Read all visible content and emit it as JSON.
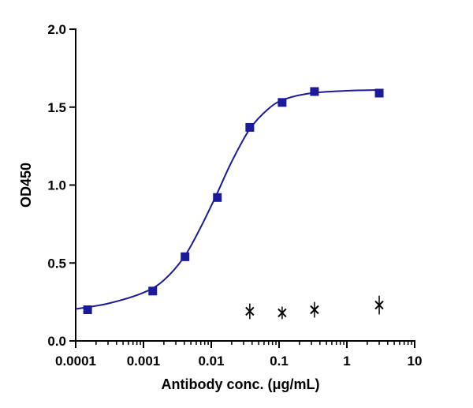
{
  "chart_data": {
    "type": "scatter",
    "title": "",
    "xlabel": "Antibody conc. (μg/mL)",
    "ylabel": "OD450",
    "x_scale": "log",
    "xlim": [
      0.0001,
      10
    ],
    "ylim": [
      0,
      2.0
    ],
    "x_ticks": [
      0.0001,
      0.001,
      0.01,
      0.1,
      1,
      10
    ],
    "x_tick_labels": [
      "0.0001",
      "0.001",
      "0.01",
      "0.1",
      "1",
      "10"
    ],
    "y_ticks": [
      0,
      0.5,
      1.0,
      1.5,
      2.0
    ],
    "y_tick_labels": [
      "0.0",
      "0.5",
      "1.0",
      "1.5",
      "2.0"
    ],
    "grid": false,
    "legend": "none",
    "series": [
      {
        "marker": "square",
        "color": "#1a1a9a",
        "points": [
          {
            "x": 0.00015,
            "y": 0.2
          },
          {
            "x": 0.00137,
            "y": 0.32
          },
          {
            "x": 0.0041,
            "y": 0.54
          },
          {
            "x": 0.0123,
            "y": 0.92
          },
          {
            "x": 0.037,
            "y": 1.37
          },
          {
            "x": 0.111,
            "y": 1.53
          },
          {
            "x": 0.333,
            "y": 1.6
          },
          {
            "x": 3.0,
            "y": 1.59
          }
        ],
        "fit_line": {
          "color": "#1a1a9a",
          "points": [
            {
              "x": 0.0001,
              "y": 0.205
            },
            {
              "x": 0.0003,
              "y": 0.24
            },
            {
              "x": 0.001,
              "y": 0.31
            },
            {
              "x": 0.002,
              "y": 0.39
            },
            {
              "x": 0.004,
              "y": 0.54
            },
            {
              "x": 0.007,
              "y": 0.73
            },
            {
              "x": 0.012,
              "y": 0.94
            },
            {
              "x": 0.02,
              "y": 1.15
            },
            {
              "x": 0.037,
              "y": 1.36
            },
            {
              "x": 0.07,
              "y": 1.49
            },
            {
              "x": 0.12,
              "y": 1.55
            },
            {
              "x": 0.3,
              "y": 1.59
            },
            {
              "x": 1,
              "y": 1.605
            },
            {
              "x": 3,
              "y": 1.61
            }
          ]
        }
      },
      {
        "marker": "x-with-errorbar",
        "color": "#000000",
        "points": [
          {
            "x": 0.037,
            "y": 0.19,
            "err": 0.05
          },
          {
            "x": 0.111,
            "y": 0.18,
            "err": 0.04
          },
          {
            "x": 0.333,
            "y": 0.2,
            "err": 0.05
          },
          {
            "x": 3.0,
            "y": 0.23,
            "err": 0.06
          }
        ]
      }
    ]
  }
}
